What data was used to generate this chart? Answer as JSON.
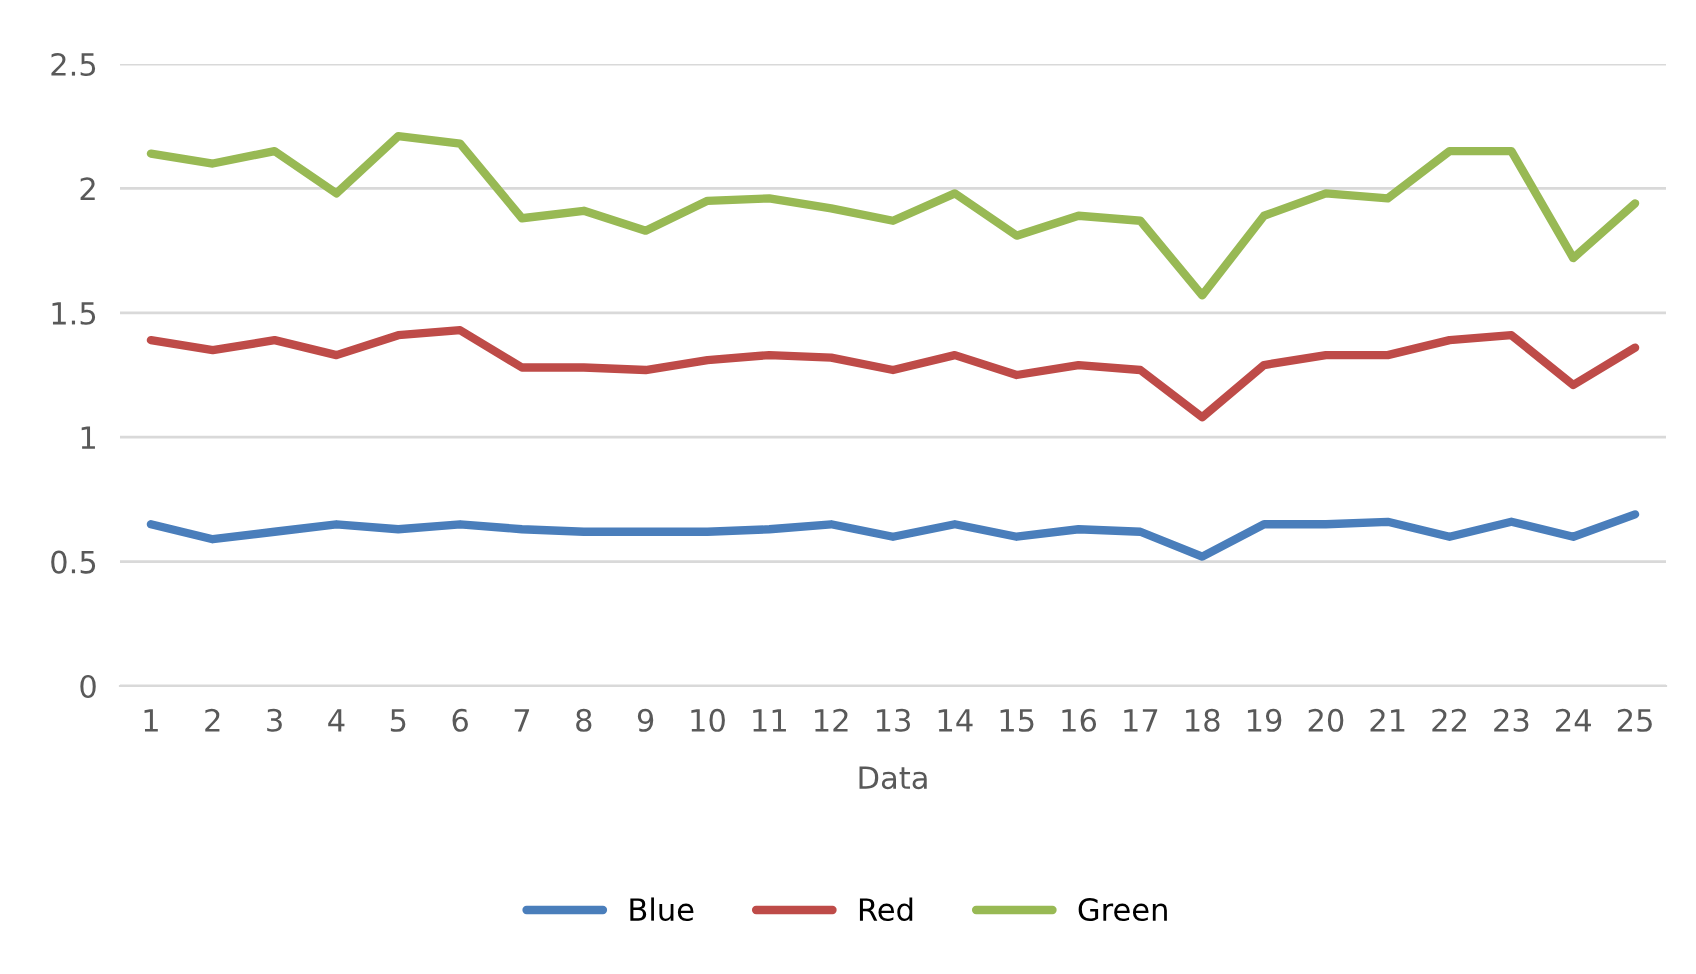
{
  "chart_data": {
    "type": "line",
    "xlabel": "Data",
    "categories": [
      "1",
      "2",
      "3",
      "4",
      "5",
      "6",
      "7",
      "8",
      "9",
      "10",
      "11",
      "12",
      "13",
      "14",
      "15",
      "16",
      "17",
      "18",
      "19",
      "20",
      "21",
      "22",
      "23",
      "24",
      "25"
    ],
    "series": [
      {
        "name": "Blue",
        "color": "#4a7ebb",
        "values": [
          0.65,
          0.59,
          0.62,
          0.65,
          0.63,
          0.65,
          0.63,
          0.62,
          0.62,
          0.62,
          0.63,
          0.65,
          0.6,
          0.65,
          0.6,
          0.63,
          0.62,
          0.52,
          0.65,
          0.65,
          0.66,
          0.6,
          0.66,
          0.6,
          0.69
        ]
      },
      {
        "name": "Red",
        "color": "#be4b48",
        "values": [
          1.39,
          1.35,
          1.39,
          1.33,
          1.41,
          1.43,
          1.28,
          1.28,
          1.27,
          1.31,
          1.33,
          1.32,
          1.27,
          1.33,
          1.25,
          1.29,
          1.27,
          1.08,
          1.29,
          1.33,
          1.33,
          1.39,
          1.41,
          1.21,
          1.36
        ]
      },
      {
        "name": "Green",
        "color": "#98b954",
        "values": [
          2.14,
          2.1,
          2.15,
          1.98,
          2.21,
          2.18,
          1.88,
          1.91,
          1.83,
          1.95,
          1.96,
          1.92,
          1.87,
          1.98,
          1.81,
          1.89,
          1.87,
          1.57,
          1.89,
          1.98,
          1.96,
          2.15,
          2.15,
          1.72,
          1.94
        ]
      }
    ],
    "ylim": [
      0,
      2.5
    ],
    "yticks": [
      0,
      0.5,
      1,
      1.5,
      2,
      2.5
    ],
    "grid": "y",
    "legend": "bottom",
    "marker": "none",
    "line_style": "solid"
  }
}
